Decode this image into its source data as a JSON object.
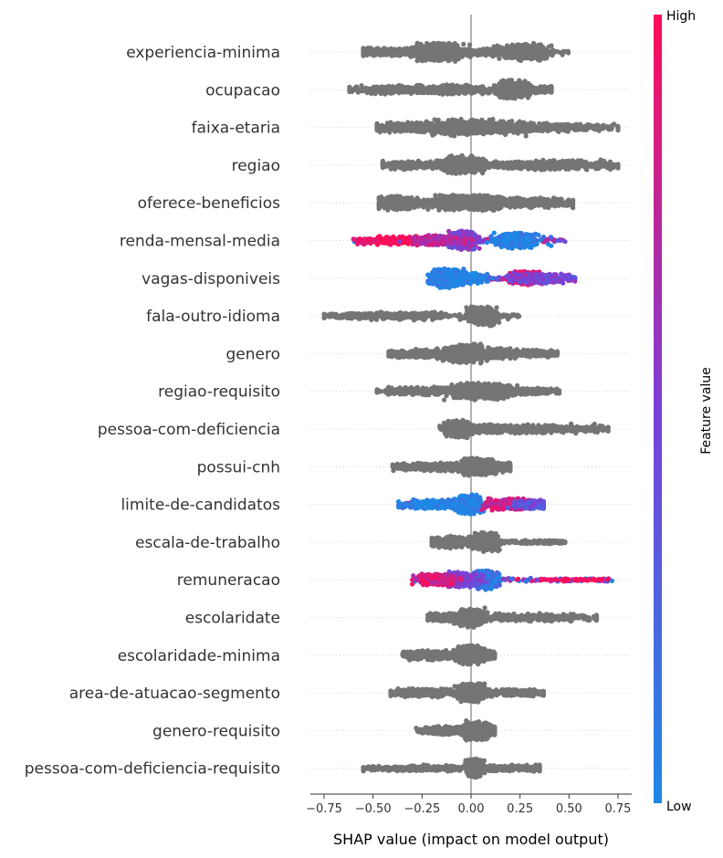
{
  "chart_data": {
    "type": "beeswarm",
    "xlabel": "SHAP value (impact on model output)",
    "xlim": [
      -0.82,
      0.82
    ],
    "xticks": [
      "−0.75",
      "−0.50",
      "−0.25",
      "0.00",
      "0.25",
      "0.50",
      "0.75"
    ],
    "xtick_values": [
      -0.75,
      -0.5,
      -0.25,
      0,
      0.25,
      0.5,
      0.75
    ],
    "colorbar": {
      "title": "Feature value",
      "high": "High",
      "low": "Low",
      "high_color": "#ff0d57",
      "mid_color": "#7b3fd8",
      "low_color": "#1e88e5"
    },
    "default_color": "#757575",
    "features": [
      {
        "name": "experiencia-minima",
        "colored": false,
        "range": [
          -0.55,
          0.5
        ],
        "clusters": [
          [
            -0.17,
            0.06,
            11
          ],
          [
            0.27,
            0.06,
            10
          ],
          [
            -0.42,
            0.1,
            5
          ],
          [
            0.05,
            0.1,
            4
          ]
        ]
      },
      {
        "name": "ocupacao",
        "colored": false,
        "range": [
          -0.62,
          0.41
        ],
        "clusters": [
          [
            0.22,
            0.04,
            11
          ],
          [
            -0.08,
            0.08,
            6
          ],
          [
            -0.4,
            0.1,
            5
          ],
          [
            0.35,
            0.05,
            4
          ]
        ]
      },
      {
        "name": "faixa-etaria",
        "colored": false,
        "range": [
          -0.48,
          0.75
        ],
        "clusters": [
          [
            -0.05,
            0.1,
            10
          ],
          [
            0.18,
            0.15,
            7
          ],
          [
            0.5,
            0.12,
            4
          ],
          [
            -0.3,
            0.12,
            6
          ]
        ]
      },
      {
        "name": "regiao",
        "colored": false,
        "range": [
          -0.45,
          0.75
        ],
        "clusters": [
          [
            -0.03,
            0.05,
            11
          ],
          [
            0.45,
            0.15,
            6
          ],
          [
            -0.3,
            0.1,
            5
          ],
          [
            0.22,
            0.05,
            4
          ]
        ]
      },
      {
        "name": "oferece-beneficios",
        "colored": false,
        "range": [
          -0.47,
          0.52
        ],
        "clusters": [
          [
            -0.37,
            0.05,
            8
          ],
          [
            -0.08,
            0.05,
            9
          ],
          [
            0.08,
            0.05,
            9
          ],
          [
            0.32,
            0.1,
            6
          ]
        ]
      },
      {
        "name": "renda-mensal-media",
        "colored": true,
        "range": [
          -0.6,
          0.48
        ],
        "clusters": [
          [
            -0.04,
            0.03,
            11,
            0.5
          ],
          [
            0.23,
            0.05,
            9,
            0.0
          ],
          [
            -0.38,
            0.1,
            5,
            1.0
          ],
          [
            -0.15,
            0.07,
            6,
            0.7
          ]
        ]
      },
      {
        "name": "vagas-disponiveis",
        "colored": true,
        "range": [
          -0.22,
          0.53
        ],
        "clusters": [
          [
            -0.12,
            0.04,
            11,
            0.0
          ],
          [
            0.28,
            0.04,
            8,
            0.85
          ],
          [
            0.35,
            0.08,
            6,
            0.5
          ],
          [
            0.0,
            0.03,
            6,
            0.0
          ]
        ]
      },
      {
        "name": "fala-outro-idioma",
        "colored": false,
        "range": [
          -0.75,
          0.25
        ],
        "clusters": [
          [
            0.06,
            0.03,
            11
          ],
          [
            -0.35,
            0.15,
            5
          ],
          [
            -0.6,
            0.05,
            3
          ]
        ]
      },
      {
        "name": "genero",
        "colored": false,
        "range": [
          -0.42,
          0.44
        ],
        "clusters": [
          [
            -0.05,
            0.05,
            11
          ],
          [
            0.1,
            0.08,
            7
          ],
          [
            -0.25,
            0.1,
            5
          ],
          [
            0.33,
            0.07,
            4
          ]
        ]
      },
      {
        "name": "regiao-requisito",
        "colored": false,
        "range": [
          -0.48,
          0.45
        ],
        "clusters": [
          [
            0.0,
            0.05,
            10
          ],
          [
            0.14,
            0.03,
            9
          ],
          [
            -0.22,
            0.12,
            5
          ],
          [
            0.28,
            0.08,
            4
          ]
        ]
      },
      {
        "name": "pessoa-com-deficiencia",
        "colored": false,
        "range": [
          -0.16,
          0.7
        ],
        "clusters": [
          [
            -0.06,
            0.03,
            10
          ],
          [
            0.35,
            0.18,
            6
          ],
          [
            0.08,
            0.05,
            5
          ]
        ]
      },
      {
        "name": "possui-cnh",
        "colored": false,
        "range": [
          -0.4,
          0.2
        ],
        "clusters": [
          [
            0.03,
            0.04,
            10
          ],
          [
            -0.2,
            0.1,
            5
          ],
          [
            0.15,
            0.03,
            5
          ]
        ]
      },
      {
        "name": "limite-de-candidatos",
        "colored": true,
        "range": [
          -0.37,
          0.37
        ],
        "clusters": [
          [
            -0.01,
            0.03,
            11,
            0.0
          ],
          [
            0.2,
            0.06,
            7,
            0.8
          ],
          [
            -0.2,
            0.08,
            6,
            0.0
          ],
          [
            0.32,
            0.04,
            5,
            0.4
          ]
        ]
      },
      {
        "name": "escala-de-trabalho",
        "colored": false,
        "range": [
          -0.2,
          0.48
        ],
        "clusters": [
          [
            0.07,
            0.03,
            11
          ],
          [
            -0.1,
            0.05,
            7
          ],
          [
            0.4,
            0.05,
            2
          ]
        ]
      },
      {
        "name": "remuneracao",
        "colored": true,
        "range": [
          -0.3,
          0.72
        ],
        "clusters": [
          [
            0.07,
            0.03,
            11,
            0.1
          ],
          [
            -0.05,
            0.04,
            9,
            0.5
          ],
          [
            -0.18,
            0.05,
            7,
            0.85
          ],
          [
            0.55,
            0.1,
            1,
            1.0
          ]
        ]
      },
      {
        "name": "escolaridate",
        "colored": false,
        "range": [
          -0.22,
          0.64
        ],
        "clusters": [
          [
            0.0,
            0.03,
            11
          ],
          [
            0.3,
            0.2,
            5
          ],
          [
            -0.12,
            0.06,
            5
          ]
        ]
      },
      {
        "name": "escolaridade-minima",
        "colored": false,
        "range": [
          -0.35,
          0.12
        ],
        "clusters": [
          [
            0.0,
            0.03,
            11
          ],
          [
            -0.2,
            0.08,
            6
          ],
          [
            0.08,
            0.03,
            5
          ]
        ]
      },
      {
        "name": "area-de-atuacao-segmento",
        "colored": false,
        "range": [
          -0.41,
          0.37
        ],
        "clusters": [
          [
            0.0,
            0.03,
            11
          ],
          [
            -0.2,
            0.1,
            5
          ],
          [
            0.2,
            0.1,
            5
          ]
        ]
      },
      {
        "name": "genero-requisito",
        "colored": false,
        "range": [
          -0.28,
          0.12
        ],
        "clusters": [
          [
            0.03,
            0.03,
            11
          ],
          [
            -0.12,
            0.06,
            5
          ],
          [
            0.1,
            0.02,
            5
          ]
        ]
      },
      {
        "name": "pessoa-com-deficiencia-requisito",
        "colored": false,
        "range": [
          -0.55,
          0.35
        ],
        "clusters": [
          [
            0.02,
            0.02,
            11
          ],
          [
            -0.25,
            0.15,
            4
          ],
          [
            0.2,
            0.1,
            4
          ]
        ]
      }
    ]
  }
}
